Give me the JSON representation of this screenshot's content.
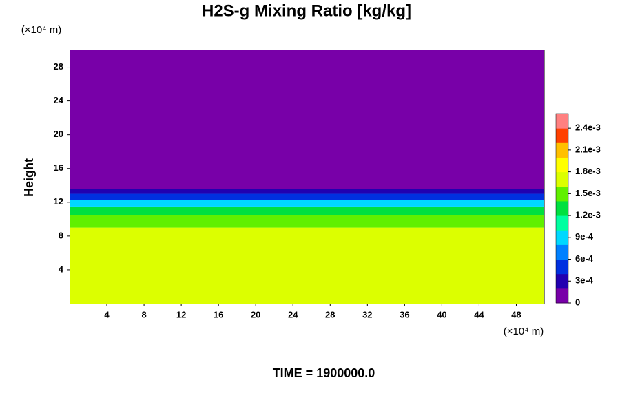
{
  "chart_data": {
    "type": "heatmap",
    "title": "H2S-g Mixing Ratio [kg/kg]",
    "y_label": "Height",
    "x_unit": "(×10⁴ m)",
    "y_unit": "(×10⁴ m)",
    "footer": "TIME = 1900000.0",
    "xlim": [
      0,
      51
    ],
    "xticks": [
      4,
      8,
      12,
      16,
      20,
      24,
      28,
      32,
      36,
      40,
      44,
      48
    ],
    "ylim": [
      0,
      30
    ],
    "yticks": [
      4,
      8,
      12,
      16,
      20,
      24,
      28
    ],
    "y_edges": [
      0,
      9,
      10.5,
      11.5,
      12.3,
      13,
      13.6,
      30
    ],
    "values": [
      0.00175,
      0.0015,
      0.0012,
      0.0009,
      0.0005,
      0.0002,
      0
    ],
    "clim": [
      0,
      0.0026
    ],
    "colors": [
      "#7800a8",
      "#2200b0",
      "#0030e0",
      "#0080ff",
      "#00d8ff",
      "#00ffa0",
      "#00e040",
      "#60f000",
      "#dcff00",
      "#ffff00",
      "#ffc000",
      "#ff4000",
      "#ff8080"
    ],
    "cticks": [
      0,
      {
        "value": 0.0003,
        "label": "3e-4"
      },
      {
        "value": 0.0006,
        "label": "6e-4"
      },
      {
        "value": 0.0009,
        "label": "9e-4"
      },
      {
        "value": 0.0012,
        "label": "1.2e-3"
      },
      {
        "value": 0.0015,
        "label": "1.5e-3"
      },
      {
        "value": 0.0018,
        "label": "1.8e-3"
      },
      {
        "value": 0.0021,
        "label": "2.1e-3"
      },
      {
        "value": 0.0024,
        "label": "2.4e-3"
      }
    ]
  }
}
